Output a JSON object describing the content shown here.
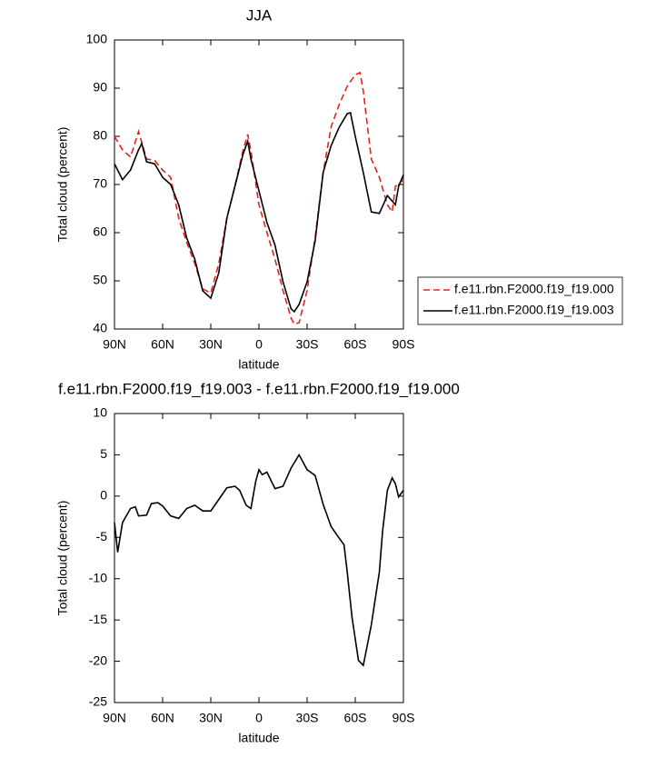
{
  "chart_data": [
    {
      "type": "line",
      "title": "JJA",
      "xlabel": "latitude",
      "ylabel": "Total cloud (percent)",
      "xlim": [
        90,
        -90
      ],
      "ylim": [
        40,
        100
      ],
      "xticks": [
        {
          "value": 90,
          "label": "90N"
        },
        {
          "value": 60,
          "label": "60N"
        },
        {
          "value": 30,
          "label": "30N"
        },
        0,
        {
          "value": -30,
          "label": "30S"
        },
        {
          "value": -60,
          "label": "60S"
        },
        {
          "value": -90,
          "label": "90S"
        }
      ],
      "yticks": [
        40,
        50,
        60,
        70,
        80,
        90,
        100
      ],
      "legend": "outside-right",
      "series": [
        {
          "name": "f.e11.rbn.F2000.f19_f19.000",
          "color": "#e8201e",
          "style": "dashed",
          "x": [
            90,
            85,
            80,
            75,
            70,
            65,
            60,
            55,
            50,
            45,
            40,
            35,
            30,
            25,
            20,
            15,
            10,
            7,
            5,
            0,
            -5,
            -10,
            -15,
            -20,
            -22,
            -25,
            -30,
            -35,
            -40,
            -45,
            -50,
            -55,
            -60,
            -63,
            -65,
            -70,
            -75,
            -80,
            -83,
            -85,
            -90
          ],
          "values": [
            80,
            77.2,
            75.7,
            81,
            75.3,
            75,
            73,
            71.5,
            63,
            58,
            53.6,
            48.3,
            47.5,
            53.6,
            63,
            69.6,
            77,
            80.4,
            77,
            65.8,
            60,
            54.5,
            48,
            42.3,
            41,
            41.3,
            48,
            59,
            72.5,
            82,
            86.6,
            90.4,
            92.8,
            93.2,
            89.4,
            75.3,
            71.5,
            65.8,
            64.3,
            69.6,
            71
          ]
        },
        {
          "name": "f.e11.rbn.F2000.f19_f19.003",
          "color": "#000000",
          "style": "solid",
          "x": [
            90,
            85,
            80,
            75,
            73,
            70,
            65,
            60,
            55,
            50,
            45,
            40,
            35,
            30,
            25,
            20,
            15,
            10,
            7,
            5,
            0,
            -5,
            -10,
            -15,
            -20,
            -22,
            -25,
            -30,
            -35,
            -40,
            -45,
            -50,
            -55,
            -57,
            -60,
            -65,
            -70,
            -75,
            -80,
            -85,
            -87,
            -90
          ],
          "values": [
            74.3,
            71,
            73,
            77.2,
            78.5,
            74.7,
            74.3,
            71.5,
            70,
            65.8,
            58.9,
            54.5,
            47.9,
            46.4,
            51.7,
            63,
            69.6,
            76.2,
            79,
            75.3,
            68.7,
            62.1,
            57.4,
            49.8,
            44.2,
            43.6,
            45.1,
            49.8,
            58.3,
            72.5,
            78.1,
            81.9,
            84.7,
            84.9,
            80,
            72.5,
            64.3,
            64,
            67.7,
            65.8,
            69.6,
            72
          ]
        }
      ]
    },
    {
      "type": "line",
      "title": "f.e11.rbn.F2000.f19_f19.003 - f.e11.rbn.F2000.f19_f19.000",
      "xlabel": "latitude",
      "ylabel": "Total cloud (percent)",
      "xlim": [
        90,
        -90
      ],
      "ylim": [
        -25,
        10
      ],
      "xticks": [
        {
          "value": 90,
          "label": "90N"
        },
        {
          "value": 60,
          "label": "60N"
        },
        {
          "value": 30,
          "label": "30N"
        },
        0,
        {
          "value": -30,
          "label": "30S"
        },
        {
          "value": -60,
          "label": "60S"
        },
        {
          "value": -90,
          "label": "90S"
        }
      ],
      "yticks": [
        -25,
        -20,
        -15,
        -10,
        -5,
        0,
        5,
        10
      ],
      "series": [
        {
          "color": "#000000",
          "style": "solid",
          "x": [
            90,
            88,
            85,
            80,
            77,
            75,
            70,
            67,
            63,
            60,
            55,
            50,
            45,
            40,
            35,
            30,
            25,
            20,
            15,
            12,
            8,
            5,
            2,
            0,
            -2,
            -5,
            -10,
            -15,
            -20,
            -25,
            -30,
            -35,
            -40,
            -45,
            -50,
            -53,
            -55,
            -58,
            -62,
            -65,
            -70,
            -75,
            -77,
            -80,
            -83,
            -85,
            -87,
            -90
          ],
          "values": [
            -3.2,
            -6.8,
            -3.2,
            -1.5,
            -1.3,
            -2.4,
            -2.3,
            -0.9,
            -0.8,
            -1.2,
            -2.4,
            -2.7,
            -1.5,
            -1.1,
            -1.8,
            -1.8,
            -0.4,
            1,
            1.2,
            0.7,
            -1.1,
            -1.5,
            1.8,
            3.2,
            2.6,
            2.9,
            0.9,
            1.2,
            3.4,
            5,
            3.2,
            2.5,
            -1,
            -3.7,
            -5.1,
            -5.9,
            -9.2,
            -14.7,
            -19.9,
            -20.5,
            -15.6,
            -9.2,
            -4.3,
            0.7,
            2.2,
            1.5,
            -0.1,
            0.7
          ]
        }
      ]
    }
  ]
}
